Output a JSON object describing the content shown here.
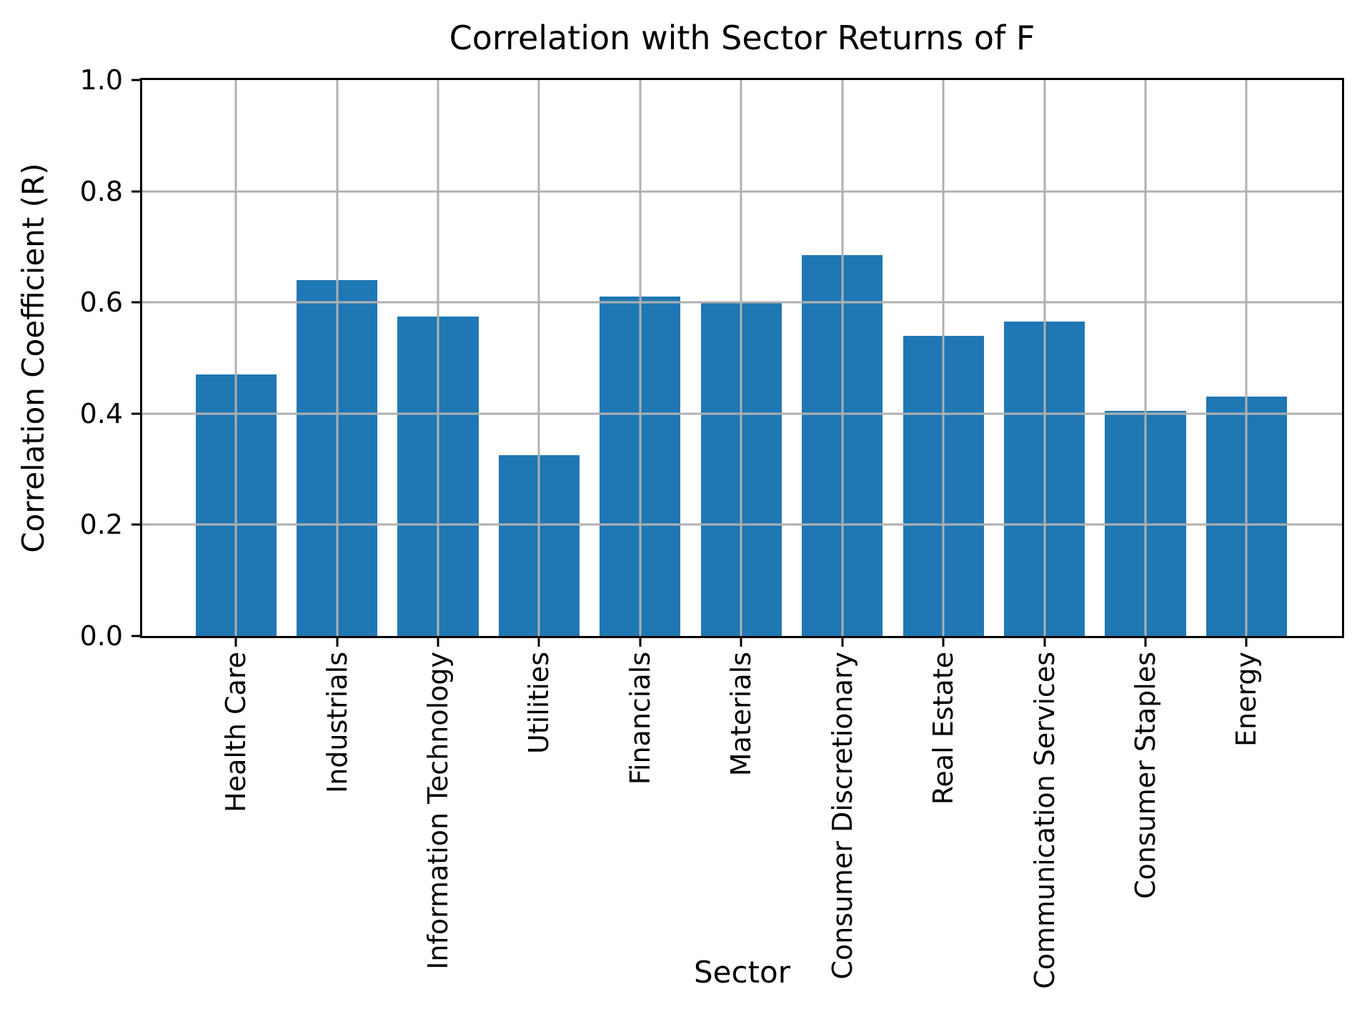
{
  "chart_data": {
    "type": "bar",
    "title": "Correlation with Sector Returns of F",
    "xlabel": "Sector",
    "ylabel": "Correlation Coefficient (R)",
    "categories": [
      "Health Care",
      "Industrials",
      "Information Technology",
      "Utilities",
      "Financials",
      "Materials",
      "Consumer Discretionary",
      "Real Estate",
      "Communication Services",
      "Consumer Staples",
      "Energy"
    ],
    "values": [
      0.47,
      0.64,
      0.575,
      0.325,
      0.61,
      0.6,
      0.685,
      0.54,
      0.565,
      0.405,
      0.43
    ],
    "ylim": [
      0.0,
      1.0
    ],
    "yticks": [
      0.0,
      0.2,
      0.4,
      0.6,
      0.8,
      1.0
    ],
    "ytick_labels": [
      "0.0",
      "0.2",
      "0.4",
      "0.6",
      "0.8",
      "1.0"
    ],
    "bar_color": "#1f77b4",
    "grid_color": "#b0b0b0",
    "grid": "both-axes, drawn above bars",
    "legend": "none"
  }
}
